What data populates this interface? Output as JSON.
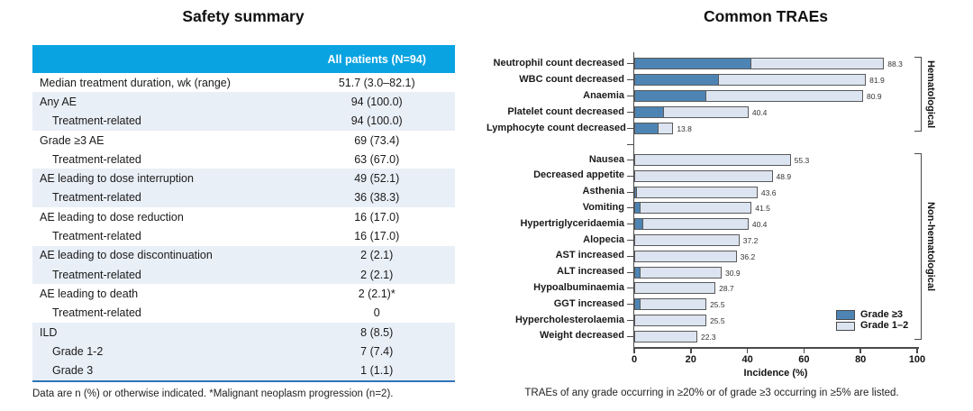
{
  "colors": {
    "table_header_bg": "#0aa3e2",
    "table_header_text": "#ffffff",
    "table_row_shade": "#e9eff7",
    "table_bottom_rule": "#2e75b6",
    "bar_grade_ge3": "#4e84b4",
    "bar_grade_1_2": "#dbe4f0",
    "bar_border": "#5a5a5a",
    "axis": "#4a4a4a"
  },
  "chart_data": [
    {
      "type": "table",
      "title": "Safety summary",
      "columns": [
        "",
        "All patients (N=94)"
      ],
      "rows": [
        {
          "label": "Median treatment duration, wk (range)",
          "value": "51.7 (3.0–82.1)",
          "indent": false,
          "shaded": false
        },
        {
          "label": "Any AE",
          "value": "94 (100.0)",
          "indent": false,
          "shaded": true
        },
        {
          "label": "Treatment-related",
          "value": "94 (100.0)",
          "indent": true,
          "shaded": true
        },
        {
          "label": "Grade ≥3 AE",
          "value": "69 (73.4)",
          "indent": false,
          "shaded": false
        },
        {
          "label": "Treatment-related",
          "value": "63 (67.0)",
          "indent": true,
          "shaded": false
        },
        {
          "label": "AE leading to dose interruption",
          "value": "49 (52.1)",
          "indent": false,
          "shaded": true
        },
        {
          "label": "Treatment-related",
          "value": "36 (38.3)",
          "indent": true,
          "shaded": true
        },
        {
          "label": "AE leading to dose reduction",
          "value": "16 (17.0)",
          "indent": false,
          "shaded": false
        },
        {
          "label": "Treatment-related",
          "value": "16 (17.0)",
          "indent": true,
          "shaded": false
        },
        {
          "label": "AE leading to dose discontinuation",
          "value": "2 (2.1)",
          "indent": false,
          "shaded": true
        },
        {
          "label": "Treatment-related",
          "value": "2 (2.1)",
          "indent": true,
          "shaded": true
        },
        {
          "label": "AE leading to death",
          "value": "2 (2.1)*",
          "indent": false,
          "shaded": false
        },
        {
          "label": "Treatment-related",
          "value": "0",
          "indent": true,
          "shaded": false
        },
        {
          "label": "ILD",
          "value": "8 (8.5)",
          "indent": false,
          "shaded": true
        },
        {
          "label": "Grade 1-2",
          "value": "7 (7.4)",
          "indent": true,
          "shaded": true
        },
        {
          "label": "Grade 3",
          "value": "1 (1.1)",
          "indent": true,
          "shaded": true
        }
      ],
      "footnote": "Data are n (%) or otherwise indicated. *Malignant neoplasm progression (n=2)."
    },
    {
      "type": "bar",
      "orientation": "horizontal",
      "stacked": true,
      "title": "Common TRAEs",
      "xlabel": "Incidence (%)",
      "xlim": [
        0,
        100
      ],
      "xticks": [
        0,
        20,
        40,
        60,
        80,
        100
      ],
      "grid": false,
      "legend": {
        "position": "inside-right",
        "entries": [
          {
            "label": "Grade ≥3",
            "color": "#4e84b4"
          },
          {
            "label": "Grade 1–2",
            "color": "#dbe4f0"
          }
        ]
      },
      "groups": [
        {
          "name": "Hematological",
          "bars": [
            {
              "category": "Neutrophil count decreased",
              "total": 88.3,
              "grade_ge3_est": 41.5
            },
            {
              "category": "WBC count decreased",
              "total": 81.9,
              "grade_ge3_est": 29.8
            },
            {
              "category": "Anaemia",
              "total": 80.9,
              "grade_ge3_est": 25.5
            },
            {
              "category": "Platelet count decreased",
              "total": 40.4,
              "grade_ge3_est": 10.6
            },
            {
              "category": "Lymphocyte count decreased",
              "total": 13.8,
              "grade_ge3_est": 8.5
            }
          ]
        },
        {
          "name": "Non-hematological",
          "bars": [
            {
              "category": "Nausea",
              "total": 55.3,
              "grade_ge3_est": 0
            },
            {
              "category": "Decreased appetite",
              "total": 48.9,
              "grade_ge3_est": 0
            },
            {
              "category": "Asthenia",
              "total": 43.6,
              "grade_ge3_est": 1.1
            },
            {
              "category": "Vomiting",
              "total": 41.5,
              "grade_ge3_est": 2.1
            },
            {
              "category": "Hypertriglyceridaemia",
              "total": 40.4,
              "grade_ge3_est": 3.2
            },
            {
              "category": "Alopecia",
              "total": 37.2,
              "grade_ge3_est": 0
            },
            {
              "category": "AST increased",
              "total": 36.2,
              "grade_ge3_est": 0
            },
            {
              "category": "ALT increased",
              "total": 30.9,
              "grade_ge3_est": 2.1
            },
            {
              "category": "Hypoalbuminaemia",
              "total": 28.7,
              "grade_ge3_est": 0
            },
            {
              "category": "GGT increased",
              "total": 25.5,
              "grade_ge3_est": 2.1
            },
            {
              "category": "Hypercholesterolaemia",
              "total": 25.5,
              "grade_ge3_est": 0
            },
            {
              "category": "Weight decreased",
              "total": 22.3,
              "grade_ge3_est": 0
            }
          ]
        }
      ],
      "footnote": "TRAEs of any grade occurring in ≥20% or of grade ≥3 occurring in ≥5% are listed."
    }
  ]
}
